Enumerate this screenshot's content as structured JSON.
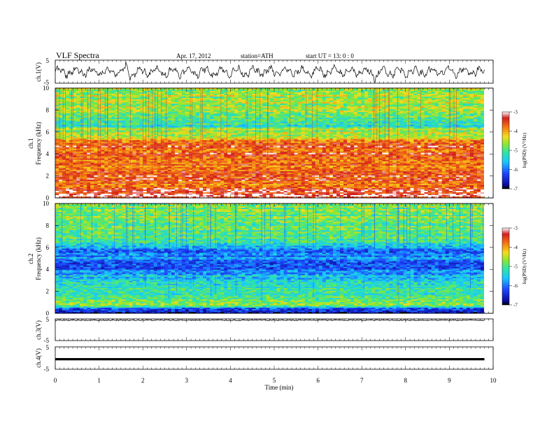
{
  "header": {
    "title": "VLF  Spectra",
    "date": "Apr. 17, 2012",
    "station": "station=ATH",
    "start_ut": "start  UT  =    13: 0  : 0"
  },
  "colors": {
    "frame": "#000000",
    "spectrogram_scale": [
      "#0a0a9a",
      "#1e46ff",
      "#19c8ff",
      "#32e6a0",
      "#8ce632",
      "#f5dc1e",
      "#f57814",
      "#d21e1e",
      "#ffffff"
    ]
  },
  "chart_data": [
    {
      "type": "line",
      "panel": "ch1-waveform",
      "ylabel": "ch.1(V)",
      "ylim": [
        -5,
        5
      ],
      "yticks": [
        "5",
        "-5"
      ],
      "x_range_min": [
        0,
        9.8
      ],
      "note_level": "oscillating between about -3 and 3 V with dips near 1.7 and 7.3 min"
    },
    {
      "type": "heatmap",
      "panel": "ch1-spectrogram",
      "ylabel": "ch.1",
      "ylabel2": "Frequency  (kHz)",
      "ylim": [
        0,
        10
      ],
      "yticks": [
        "10",
        "8",
        "6",
        "4",
        "2",
        "0"
      ],
      "colorbar": {
        "label": "log(PSD) (V²/Hz)",
        "ticks": [
          "-3",
          "-4",
          "-5",
          "-6",
          "-7"
        ],
        "range": [
          -7,
          -3
        ]
      },
      "bands": [
        {
          "f_khz": 0.5,
          "log_psd": -3.2
        },
        {
          "f_khz": 1.0,
          "log_psd": -3.8
        },
        {
          "f_khz": 2.0,
          "log_psd": -3.6
        },
        {
          "f_khz": 3.0,
          "log_psd": -3.8
        },
        {
          "f_khz": 3.5,
          "log_psd": -3.6
        },
        {
          "f_khz": 4.5,
          "log_psd": -3.6
        },
        {
          "f_khz": 5.0,
          "log_psd": -3.5
        },
        {
          "f_khz": 5.6,
          "log_psd": -4.4
        },
        {
          "f_khz": 6.2,
          "log_psd": -4.7
        },
        {
          "f_khz": 6.6,
          "log_psd": -5.3
        },
        {
          "f_khz": 7.5,
          "log_psd": -4.8
        },
        {
          "f_khz": 9.0,
          "log_psd": -4.6
        }
      ]
    },
    {
      "type": "heatmap",
      "panel": "ch2-spectrogram",
      "ylabel": "ch.2",
      "ylabel2": "Frequency  (kHz)",
      "ylim": [
        0,
        10
      ],
      "yticks": [
        "10",
        "8",
        "6",
        "4",
        "2",
        "0"
      ],
      "colorbar": {
        "label": "log(PSD) (V²/Hz)",
        "ticks": [
          "-3",
          "-4",
          "-5",
          "-6",
          "-7"
        ],
        "range": [
          -7,
          -3
        ]
      },
      "bands": [
        {
          "f_khz": 0.3,
          "log_psd": -6.6
        },
        {
          "f_khz": 0.8,
          "log_psd": -4.6
        },
        {
          "f_khz": 1.5,
          "log_psd": -5.0
        },
        {
          "f_khz": 2.5,
          "log_psd": -5.2
        },
        {
          "f_khz": 3.5,
          "log_psd": -5.6
        },
        {
          "f_khz": 4.2,
          "log_psd": -6.3
        },
        {
          "f_khz": 5.0,
          "log_psd": -5.8
        },
        {
          "f_khz": 5.6,
          "log_psd": -6.1
        },
        {
          "f_khz": 6.5,
          "log_psd": -5.1
        },
        {
          "f_khz": 8.0,
          "log_psd": -4.9
        },
        {
          "f_khz": 9.5,
          "log_psd": -4.8
        }
      ]
    },
    {
      "type": "line",
      "panel": "ch3-waveform",
      "ylabel": "ch.3(V)",
      "ylim": [
        -5,
        5
      ],
      "yticks": [
        "5",
        "-5"
      ],
      "level_v": 5
    },
    {
      "type": "line",
      "panel": "ch4-waveform",
      "ylabel": "ch.4(V)",
      "ylim": [
        -5,
        5
      ],
      "yticks": [
        "5",
        "-5"
      ],
      "level_v": -0.5
    }
  ],
  "xaxis": {
    "label": "Time  (min)",
    "ticks": [
      "0",
      "1",
      "2",
      "3",
      "4",
      "5",
      "6",
      "7",
      "8",
      "9",
      "10"
    ],
    "range": [
      0,
      10
    ]
  }
}
